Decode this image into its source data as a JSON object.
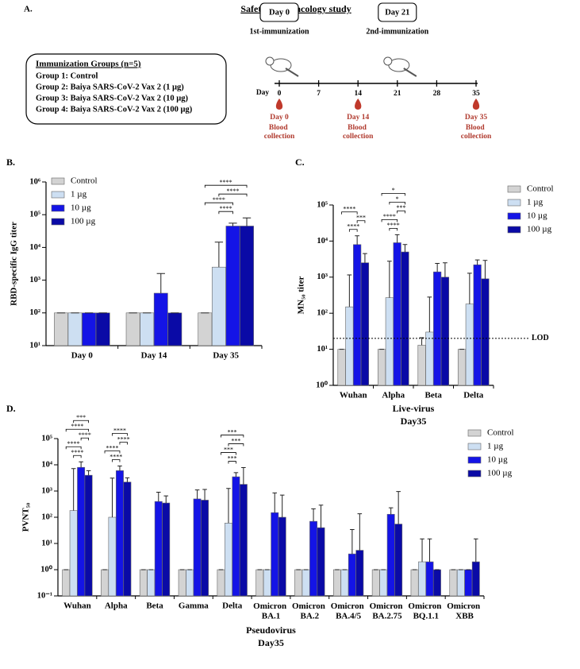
{
  "panel_a": {
    "label": "A.",
    "title": "Safety pharmacology study",
    "groups": {
      "title": "Immunization Groups (n=5)",
      "items": [
        "Group 1: Control",
        "Group 2: Baiya SARS-CoV-2 Vax 2 (1 µg)",
        "Group 3: Baiya SARS-CoV-2 Vax 2 (10 µg)",
        "Group 4: Baiya SARS-CoV-2 Vax 2 (100 µg)"
      ]
    },
    "timeline": {
      "label": "Day",
      "ticks": [
        0,
        7,
        14,
        21,
        28,
        35
      ],
      "immunizations": [
        {
          "day": 0,
          "box": "Day 0",
          "text": "1st-immunization"
        },
        {
          "day": 21,
          "box": "Day 21",
          "text": "2nd-immunization"
        }
      ],
      "collections": [
        {
          "day": 0,
          "title": "Day 0",
          "text": "Blood collection"
        },
        {
          "day": 14,
          "title": "Day 14",
          "text": "Blood collection"
        },
        {
          "day": 35,
          "title": "Day 35",
          "text": "Blood collection"
        }
      ]
    }
  },
  "chart_data": [
    {
      "type": "bar",
      "panel_label": "B.",
      "ylabel": "RBD-specific IgG titer",
      "log_scale": true,
      "ylim": [
        10,
        1000000
      ],
      "yticks": [
        {
          "value": 10,
          "label": "10¹"
        },
        {
          "value": 100,
          "label": "10²"
        },
        {
          "value": 1000,
          "label": "10³"
        },
        {
          "value": 10000,
          "label": "10⁴"
        },
        {
          "value": 100000,
          "label": "10⁵"
        },
        {
          "value": 1000000,
          "label": "10⁶"
        }
      ],
      "categories": [
        "Day 0",
        "Day 14",
        "Day 35"
      ],
      "legend": "upper left",
      "series": [
        {
          "name": "Control",
          "color": "#d3d3d3",
          "values": [
            100,
            100,
            100
          ],
          "errors": [
            0,
            0,
            0
          ]
        },
        {
          "name": "1 µg",
          "color": "#cddff2",
          "values": [
            100,
            100,
            2500
          ],
          "errors": [
            0,
            0,
            12000
          ]
        },
        {
          "name": "10 µg",
          "color": "#1414e6",
          "values": [
            100,
            400,
            45000
          ],
          "errors": [
            0,
            1200,
            10000
          ]
        },
        {
          "name": "100 µg",
          "color": "#0a0aa6",
          "values": [
            100,
            100,
            45000
          ],
          "errors": [
            0,
            0,
            35000
          ]
        }
      ],
      "annotations": [
        {
          "text": "****",
          "category": "Day 35",
          "from": "1 µg",
          "to": "10 µg"
        },
        {
          "text": "****",
          "category": "Day 35",
          "from": "Control",
          "to": "10 µg"
        },
        {
          "text": "****",
          "category": "Day 35",
          "from": "1 µg",
          "to": "100 µg"
        },
        {
          "text": "****",
          "category": "Day 35",
          "from": "Control",
          "to": "100 µg"
        }
      ]
    },
    {
      "type": "bar",
      "panel_label": "C.",
      "ylabel": "MN₅₀ titer",
      "xlabel": "Live-virus",
      "subtitle": "Day35",
      "log_scale": true,
      "ylim": [
        1,
        100000
      ],
      "yticks": [
        {
          "value": 1,
          "label": "10⁰"
        },
        {
          "value": 10,
          "label": "10¹"
        },
        {
          "value": 100,
          "label": "10²"
        },
        {
          "value": 1000,
          "label": "10³"
        },
        {
          "value": 10000,
          "label": "10⁴"
        },
        {
          "value": 100000,
          "label": "10⁵"
        }
      ],
      "categories": [
        "Wuhan",
        "Alpha",
        "Beta",
        "Delta"
      ],
      "legend": "upper right",
      "reference_line": {
        "value": 20,
        "label": "LOD"
      },
      "series": [
        {
          "name": "Control",
          "color": "#d3d3d3",
          "values": [
            10,
            10,
            13,
            10
          ],
          "errors": [
            0,
            0,
            8,
            0
          ]
        },
        {
          "name": "1 µg",
          "color": "#cddff2",
          "values": [
            150,
            270,
            30,
            180
          ],
          "errors": [
            1000,
            2500,
            250,
            1100
          ]
        },
        {
          "name": "10 µg",
          "color": "#1414e6",
          "values": [
            8000,
            9000,
            1400,
            2200
          ],
          "errors": [
            6000,
            6000,
            1000,
            800
          ]
        },
        {
          "name": "100 µg",
          "color": "#0a0aa6",
          "values": [
            2500,
            5000,
            1000,
            900
          ],
          "errors": [
            2000,
            3000,
            1500,
            2000
          ]
        }
      ],
      "annotations": [
        {
          "text": "****",
          "category": "Wuhan",
          "from": "1 µg",
          "to": "10 µg"
        },
        {
          "text": "***",
          "category": "Wuhan",
          "from": "10 µg",
          "to": "100 µg"
        },
        {
          "text": "****",
          "category": "Wuhan",
          "from": "Control",
          "to": "10 µg"
        },
        {
          "text": "****",
          "category": "Alpha",
          "from": "1 µg",
          "to": "10 µg"
        },
        {
          "text": "****",
          "category": "Alpha",
          "from": "Control",
          "to": "10 µg"
        },
        {
          "text": "***",
          "category": "Alpha",
          "from": "10 µg",
          "to": "100 µg"
        },
        {
          "text": "*",
          "category": "Alpha",
          "from": "1 µg",
          "to": "100 µg"
        },
        {
          "text": "*",
          "category": "Alpha",
          "from": "Control",
          "to": "100 µg"
        }
      ]
    },
    {
      "type": "bar",
      "panel_label": "D.",
      "ylabel": "PVNT₅₀",
      "xlabel": "Pseudovirus",
      "subtitle": "Day35",
      "log_scale": true,
      "ylim": [
        0.1,
        100000
      ],
      "yticks": [
        {
          "value": 0.1,
          "label": "10⁻¹"
        },
        {
          "value": 1,
          "label": "10⁰"
        },
        {
          "value": 10,
          "label": "10¹"
        },
        {
          "value": 100,
          "label": "10²"
        },
        {
          "value": 1000,
          "label": "10³"
        },
        {
          "value": 10000,
          "label": "10⁴"
        },
        {
          "value": 100000,
          "label": "10⁵"
        }
      ],
      "categories": [
        "Wuhan",
        "Alpha",
        "Beta",
        "Gamma",
        "Delta",
        "Omicron BA.1",
        "Omicron BA.2",
        "Omicron BA.4/5",
        "Omicron BA.2.75",
        "Omicron BQ.1.1",
        "Omicron XBB"
      ],
      "legend": "upper right",
      "series": [
        {
          "name": "Control",
          "color": "#d3d3d3",
          "values": [
            1,
            1,
            1,
            1,
            1,
            1,
            1,
            1,
            1,
            1,
            1
          ],
          "errors": [
            0,
            0,
            0,
            0,
            0,
            0,
            0,
            0,
            0,
            0,
            0
          ]
        },
        {
          "name": "1 µg",
          "color": "#cddff2",
          "values": [
            180,
            100,
            1,
            1,
            60,
            1,
            1,
            1,
            1,
            2,
            1
          ],
          "errors": [
            7000,
            3000,
            0,
            0,
            1200,
            0,
            0,
            0,
            0,
            13,
            0
          ]
        },
        {
          "name": "10 µg",
          "color": "#1414e6",
          "values": [
            8000,
            6000,
            400,
            500,
            3500,
            150,
            70,
            4,
            130,
            2,
            1
          ],
          "errors": [
            5000,
            3000,
            500,
            600,
            1500,
            700,
            140,
            30,
            100,
            13,
            0
          ]
        },
        {
          "name": "100 µg",
          "color": "#0a0aa6",
          "values": [
            4000,
            2200,
            350,
            450,
            1800,
            100,
            40,
            5.5,
            55,
            1,
            2
          ],
          "errors": [
            2000,
            1000,
            300,
            700,
            6000,
            600,
            250,
            130,
            900,
            0,
            13
          ]
        }
      ],
      "annotations": [
        {
          "text": "****",
          "category": "Wuhan",
          "from": "1 µg",
          "to": "10 µg"
        },
        {
          "text": "****",
          "category": "Wuhan",
          "from": "Control",
          "to": "10 µg"
        },
        {
          "text": "****",
          "category": "Wuhan",
          "from": "10 µg",
          "to": "100 µg"
        },
        {
          "text": "****",
          "category": "Wuhan",
          "from": "Control",
          "to": "100 µg"
        },
        {
          "text": "***",
          "category": "Wuhan",
          "from": "1 µg",
          "to": "100 µg"
        },
        {
          "text": "****",
          "category": "Alpha",
          "from": "1 µg",
          "to": "10 µg"
        },
        {
          "text": "****",
          "category": "Alpha",
          "from": "Control",
          "to": "10 µg"
        },
        {
          "text": "****",
          "category": "Alpha",
          "from": "10 µg",
          "to": "100 µg"
        },
        {
          "text": "****",
          "category": "Alpha",
          "from": "1 µg",
          "to": "100 µg"
        },
        {
          "text": "***",
          "category": "Delta",
          "from": "1 µg",
          "to": "10 µg"
        },
        {
          "text": "***",
          "category": "Delta",
          "from": "Control",
          "to": "10 µg"
        },
        {
          "text": "***",
          "category": "Delta",
          "from": "1 µg",
          "to": "100 µg"
        },
        {
          "text": "***",
          "category": "Delta",
          "from": "Control",
          "to": "100 µg"
        }
      ]
    }
  ]
}
